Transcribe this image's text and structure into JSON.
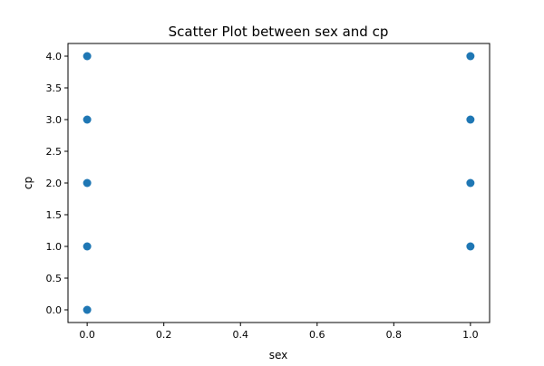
{
  "chart_data": {
    "type": "scatter",
    "title": "Scatter Plot between sex and cp",
    "xlabel": "sex",
    "ylabel": "cp",
    "xlim": [
      -0.05,
      1.05
    ],
    "ylim": [
      -0.2,
      4.2
    ],
    "xticks": [
      0.0,
      0.2,
      0.4,
      0.6,
      0.8,
      1.0
    ],
    "xtick_labels": [
      "0.0",
      "0.2",
      "0.4",
      "0.6",
      "0.8",
      "1.0"
    ],
    "yticks": [
      0.0,
      0.5,
      1.0,
      1.5,
      2.0,
      2.5,
      3.0,
      3.5,
      4.0
    ],
    "ytick_labels": [
      "0.0",
      "0.5",
      "1.0",
      "1.5",
      "2.0",
      "2.5",
      "3.0",
      "3.5",
      "4.0"
    ],
    "grid": false,
    "marker_color": "#1f77b4",
    "series": [
      {
        "points": [
          {
            "x": 0,
            "y": 0
          },
          {
            "x": 0,
            "y": 1
          },
          {
            "x": 0,
            "y": 2
          },
          {
            "x": 0,
            "y": 3
          },
          {
            "x": 0,
            "y": 4
          },
          {
            "x": 1,
            "y": 1
          },
          {
            "x": 1,
            "y": 2
          },
          {
            "x": 1,
            "y": 3
          },
          {
            "x": 1,
            "y": 4
          }
        ]
      }
    ]
  }
}
